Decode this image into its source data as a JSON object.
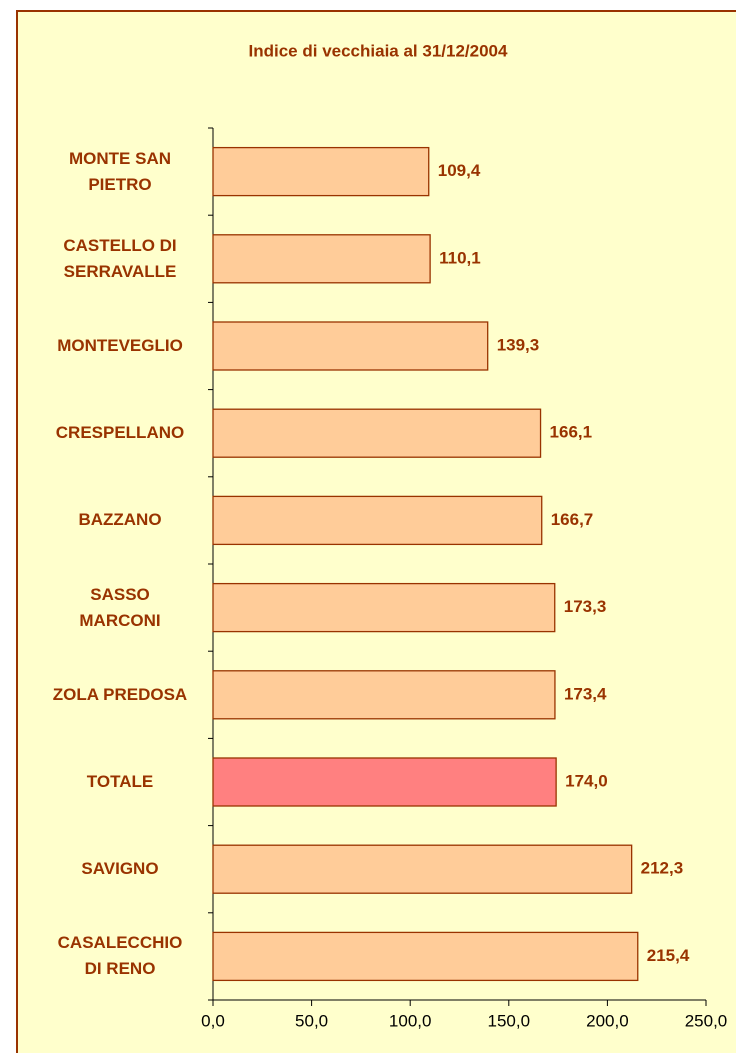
{
  "chart_data": {
    "type": "bar",
    "orientation": "horizontal",
    "title": "Indice di vecchiaia al 31/12/2004",
    "categories": [
      "MONTE SAN\nPIETRO",
      "CASTELLO DI\nSERRAVALLE",
      "MONTEVEGLIO",
      "CRESPELLANO",
      "BAZZANO",
      "SASSO\nMARCONI",
      "ZOLA PREDOSA",
      "TOTALE",
      "SAVIGNO",
      "CASALECCHIO\nDI RENO"
    ],
    "values": [
      109.4,
      110.1,
      139.3,
      166.1,
      166.7,
      173.3,
      173.4,
      174.0,
      212.3,
      215.4
    ],
    "value_labels": [
      "109,4",
      "110,1",
      "139,3",
      "166,1",
      "166,7",
      "173,3",
      "173,4",
      "174,0",
      "212,3",
      "215,4"
    ],
    "colors": [
      "#ffcc99",
      "#ffcc99",
      "#ffcc99",
      "#ffcc99",
      "#ffcc99",
      "#ffcc99",
      "#ffcc99",
      "#ff8080",
      "#ffcc99",
      "#ffcc99"
    ],
    "xlim": [
      0,
      250
    ],
    "xticks": [
      {
        "value": 0,
        "label": "0,0"
      },
      {
        "value": 50,
        "label": "50,0"
      },
      {
        "value": 100,
        "label": "100,0"
      },
      {
        "value": 150,
        "label": "150,0"
      },
      {
        "value": 200,
        "label": "200,0"
      },
      {
        "value": 250,
        "label": "250,0"
      }
    ],
    "grid": false
  }
}
